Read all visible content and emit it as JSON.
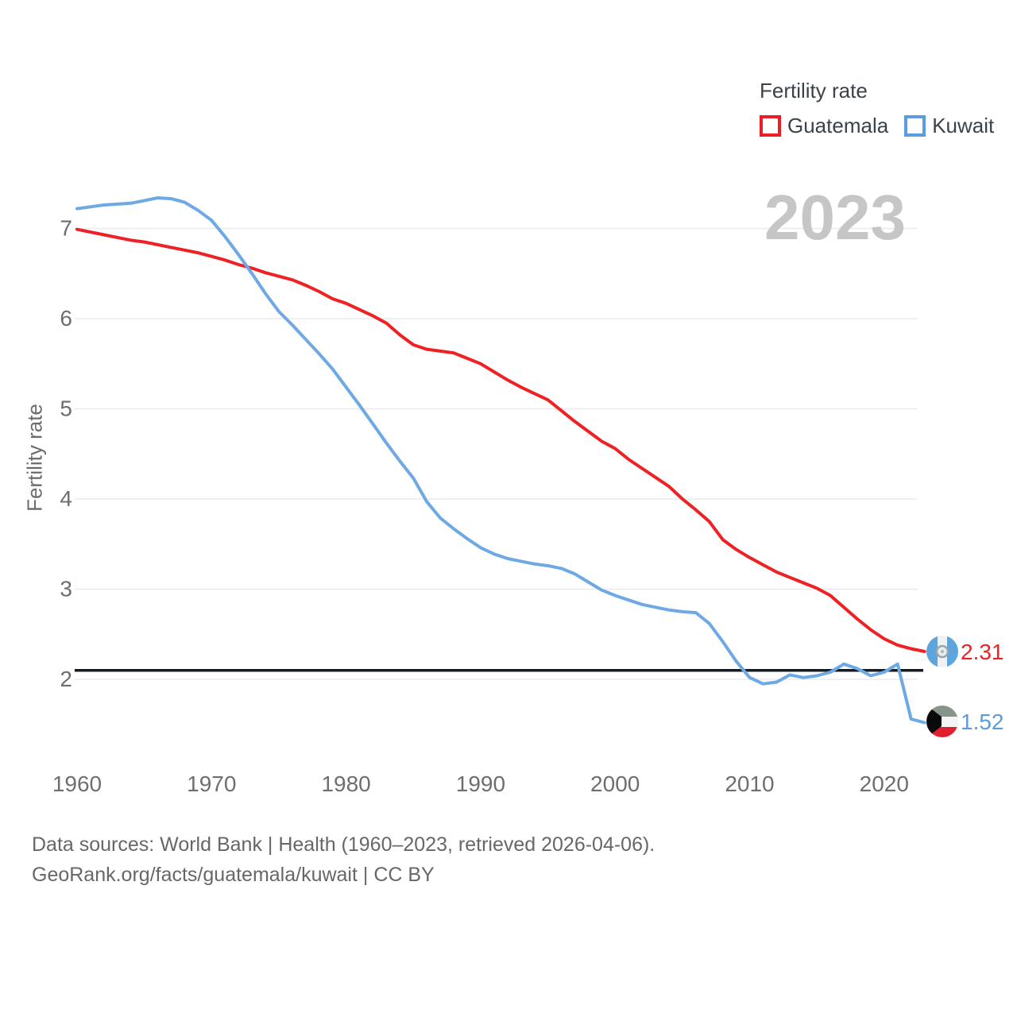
{
  "legend": {
    "title": "Fertility rate",
    "items": [
      {
        "label": "Guatemala",
        "color": "#ee1d23"
      },
      {
        "label": "Kuwait",
        "color": "#5b9be0"
      }
    ]
  },
  "watermark": "2023",
  "y_axis": {
    "label": "Fertility rate",
    "ticks": [
      2,
      3,
      4,
      5,
      6,
      7
    ]
  },
  "x_axis": {
    "ticks": [
      1960,
      1970,
      1980,
      1990,
      2000,
      2010,
      2020
    ]
  },
  "reference_line": {
    "value": 2.1,
    "color": "#161b22"
  },
  "end_labels": [
    {
      "country": "Guatemala",
      "value": "2.31",
      "color": "#ee2125",
      "flag": "guatemala-flag-icon"
    },
    {
      "country": "Kuwait",
      "value": "1.52",
      "color": "#5e9bd8",
      "flag": "kuwait-flag-icon"
    }
  ],
  "source": {
    "line1": "Data sources: World Bank | Health (1960–2023, retrieved 2026-04-06).",
    "line2": "GeoRank.org/facts/guatemala/kuwait | CC BY"
  },
  "chart_data": {
    "type": "line",
    "title": "Fertility rate",
    "xlabel": "",
    "ylabel": "Fertility rate",
    "xlim": [
      1958.5,
      2024.5
    ],
    "ylim": [
      1.25,
      7.6
    ],
    "grid": "horizontal",
    "legend_position": "top-right",
    "annotations": {
      "year_watermark": "2023",
      "replacement_level_line": 2.1
    },
    "x": [
      1960,
      1961,
      1962,
      1963,
      1964,
      1965,
      1966,
      1967,
      1968,
      1969,
      1970,
      1971,
      1972,
      1973,
      1974,
      1975,
      1976,
      1977,
      1978,
      1979,
      1980,
      1981,
      1982,
      1983,
      1984,
      1985,
      1986,
      1987,
      1988,
      1989,
      1990,
      1991,
      1992,
      1993,
      1994,
      1995,
      1996,
      1997,
      1998,
      1999,
      2000,
      2001,
      2002,
      2003,
      2004,
      2005,
      2006,
      2007,
      2008,
      2009,
      2010,
      2011,
      2012,
      2013,
      2014,
      2015,
      2016,
      2017,
      2018,
      2019,
      2020,
      2021,
      2022,
      2023
    ],
    "series": [
      {
        "name": "Guatemala",
        "color": "#ee2125",
        "values": [
          6.99,
          6.96,
          6.93,
          6.9,
          6.87,
          6.85,
          6.82,
          6.79,
          6.76,
          6.73,
          6.69,
          6.65,
          6.6,
          6.56,
          6.51,
          6.47,
          6.43,
          6.37,
          6.3,
          6.22,
          6.17,
          6.1,
          6.03,
          5.95,
          5.82,
          5.71,
          5.66,
          5.64,
          5.62,
          5.56,
          5.5,
          5.41,
          5.32,
          5.24,
          5.17,
          5.1,
          4.98,
          4.86,
          4.75,
          4.64,
          4.56,
          4.44,
          4.34,
          4.24,
          4.14,
          4.0,
          3.88,
          3.75,
          3.55,
          3.44,
          3.35,
          3.27,
          3.19,
          3.13,
          3.07,
          3.01,
          2.93,
          2.8,
          2.67,
          2.55,
          2.45,
          2.38,
          2.34,
          2.31
        ]
      },
      {
        "name": "Kuwait",
        "color": "#6ea9e4",
        "values": [
          7.22,
          7.24,
          7.26,
          7.27,
          7.28,
          7.31,
          7.34,
          7.33,
          7.29,
          7.2,
          7.09,
          6.91,
          6.71,
          6.5,
          6.28,
          6.08,
          5.93,
          5.77,
          5.61,
          5.44,
          5.24,
          5.04,
          4.83,
          4.62,
          4.42,
          4.23,
          3.97,
          3.79,
          3.67,
          3.56,
          3.46,
          3.39,
          3.34,
          3.31,
          3.28,
          3.26,
          3.23,
          3.17,
          3.08,
          2.99,
          2.93,
          2.88,
          2.83,
          2.8,
          2.77,
          2.75,
          2.74,
          2.62,
          2.42,
          2.2,
          2.02,
          1.95,
          1.97,
          2.05,
          2.02,
          2.04,
          2.08,
          2.17,
          2.12,
          2.04,
          2.08,
          2.17,
          1.56,
          1.52
        ]
      }
    ]
  }
}
